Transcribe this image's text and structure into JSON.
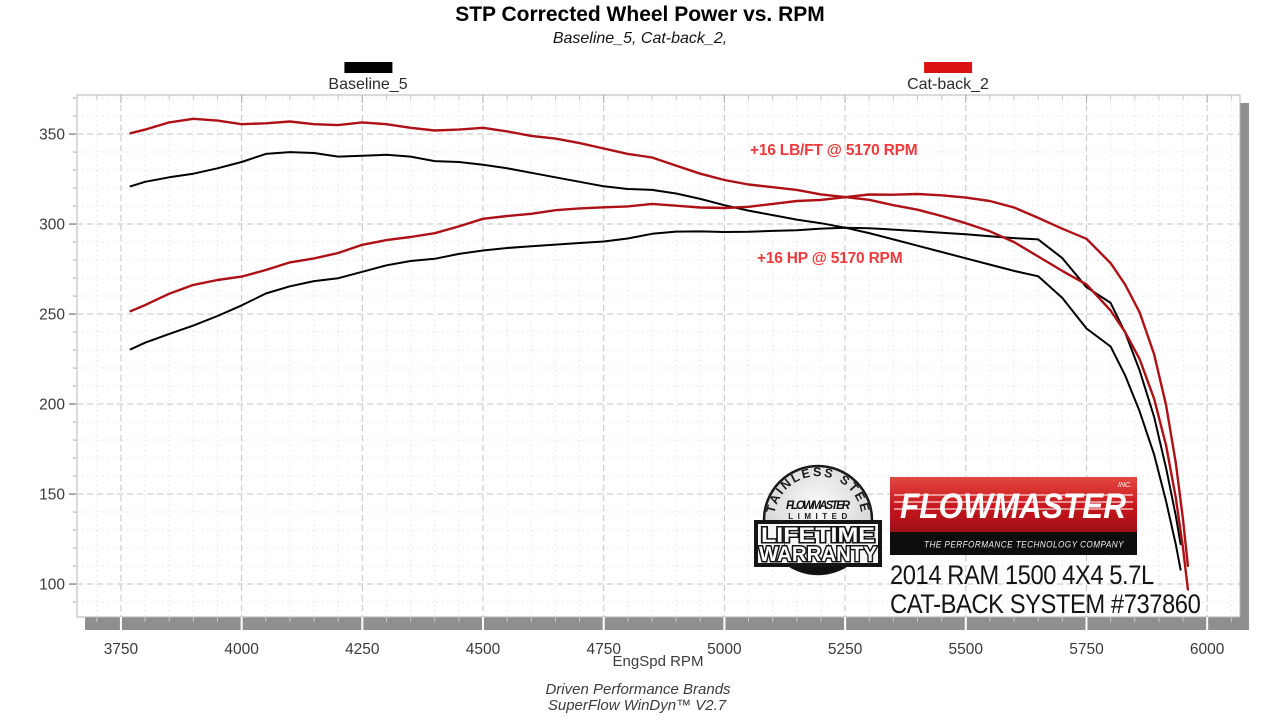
{
  "title": "STP Corrected Wheel Power vs. RPM",
  "subtitle": "Baseline_5, Cat-back_2,",
  "legend": {
    "baseline": {
      "label": "Baseline_5",
      "color": "#000000"
    },
    "catback": {
      "label": "Cat-back_2",
      "color": "#dc1212"
    }
  },
  "badge": {
    "arc_text": "STAINLESS STEEL",
    "brand": "FLOWMASTER",
    "limited": "LIMITED",
    "line1": "LIFETIME",
    "line2": "WARRANTY"
  },
  "logo": {
    "brand": "FLOWMASTER",
    "inc": "INC.",
    "tagline": "THE PERFORMANCE TECHNOLOGY COMPANY",
    "red": "#c8161d"
  },
  "vehicle": {
    "line1": "2014 RAM 1500 4X4 5.7L",
    "line2": "CAT-BACK SYSTEM #737860"
  },
  "footer": {
    "xaxis_label": "EngSpd  RPM",
    "brand_line": "Driven Performance Brands",
    "software_line": "SuperFlow WinDyn™ V2.7"
  },
  "chart_data": {
    "type": "line",
    "title": "STP Corrected Wheel Power vs. RPM",
    "subtitle": "Baseline_5, Cat-back_2,",
    "xlabel": "EngSpd RPM",
    "ylabel": "",
    "grid": true,
    "legend_position": "top",
    "xlim": [
      3659,
      6068
    ],
    "ylim": [
      81.7,
      371.7
    ],
    "x_major_ticks": [
      3750,
      4000,
      4250,
      4500,
      4750,
      5000,
      5250,
      5500,
      5750,
      6000
    ],
    "x_minor_step": 50,
    "y_major_ticks": [
      100,
      150,
      200,
      250,
      300,
      350
    ],
    "y_minor_step": 10,
    "annotations": [
      {
        "text": "+16 LB/FT @ 5170 RPM",
        "x_rpm": 5170,
        "y_val": 340,
        "color": "#ee3a3c"
      },
      {
        "text": "+16 HP @ 5170 RPM",
        "x_rpm": 5170,
        "y_val": 280,
        "color": "#ee3a3c"
      }
    ],
    "series": [
      {
        "name": "Baseline_5 torque (lb-ft)",
        "color": "#000000",
        "width": 2,
        "points": [
          [
            3770,
            321
          ],
          [
            3800,
            323.5
          ],
          [
            3850,
            326
          ],
          [
            3900,
            328
          ],
          [
            3950,
            331
          ],
          [
            4000,
            334.5
          ],
          [
            4050,
            339
          ],
          [
            4100,
            340
          ],
          [
            4150,
            339.5
          ],
          [
            4200,
            337.5
          ],
          [
            4250,
            338
          ],
          [
            4300,
            338.5
          ],
          [
            4350,
            337.5
          ],
          [
            4400,
            335
          ],
          [
            4450,
            334.5
          ],
          [
            4500,
            333
          ],
          [
            4550,
            331
          ],
          [
            4600,
            328.5
          ],
          [
            4650,
            326
          ],
          [
            4700,
            323.5
          ],
          [
            4750,
            321
          ],
          [
            4800,
            319.5
          ],
          [
            4850,
            319
          ],
          [
            4900,
            317
          ],
          [
            4950,
            314
          ],
          [
            5000,
            310.5
          ],
          [
            5050,
            307.5
          ],
          [
            5100,
            305
          ],
          [
            5150,
            302.5
          ],
          [
            5200,
            300.5
          ],
          [
            5250,
            298
          ],
          [
            5300,
            295
          ],
          [
            5350,
            291.5
          ],
          [
            5400,
            288
          ],
          [
            5450,
            284.5
          ],
          [
            5500,
            281
          ],
          [
            5550,
            277.5
          ],
          [
            5600,
            274
          ],
          [
            5650,
            271
          ],
          [
            5700,
            259
          ],
          [
            5750,
            242
          ],
          [
            5800,
            232
          ],
          [
            5830,
            216
          ],
          [
            5860,
            196
          ],
          [
            5890,
            172
          ],
          [
            5915,
            146
          ],
          [
            5935,
            122
          ],
          [
            5945,
            108
          ]
        ]
      },
      {
        "name": "Baseline_5 power (hp)",
        "color": "#000000",
        "width": 2,
        "points": [
          [
            3770,
            230.4
          ],
          [
            3800,
            234.1
          ],
          [
            3850,
            239
          ],
          [
            3900,
            243.6
          ],
          [
            3950,
            248.9
          ],
          [
            4000,
            254.8
          ],
          [
            4050,
            261.4
          ],
          [
            4100,
            265.4
          ],
          [
            4150,
            268.3
          ],
          [
            4200,
            269.9
          ],
          [
            4250,
            273.5
          ],
          [
            4300,
            277.1
          ],
          [
            4350,
            279.5
          ],
          [
            4400,
            280.7
          ],
          [
            4450,
            283.4
          ],
          [
            4500,
            285.3
          ],
          [
            4550,
            286.7
          ],
          [
            4600,
            287.7
          ],
          [
            4650,
            288.6
          ],
          [
            4700,
            289.5
          ],
          [
            4750,
            290.3
          ],
          [
            4800,
            292
          ],
          [
            4850,
            294.6
          ],
          [
            4900,
            295.8
          ],
          [
            4950,
            295.9
          ],
          [
            5000,
            295.6
          ],
          [
            5050,
            295.7
          ],
          [
            5100,
            296.2
          ],
          [
            5150,
            296.6
          ],
          [
            5200,
            297.5
          ],
          [
            5250,
            297.9
          ],
          [
            5300,
            297.7
          ],
          [
            5350,
            296.9
          ],
          [
            5400,
            296.1
          ],
          [
            5450,
            295.2
          ],
          [
            5500,
            294.3
          ],
          [
            5550,
            293.2
          ],
          [
            5600,
            292.2
          ],
          [
            5650,
            291.5
          ],
          [
            5700,
            281.1
          ],
          [
            5750,
            264.9
          ],
          [
            5800,
            256.2
          ],
          [
            5830,
            239.8
          ],
          [
            5860,
            218.7
          ],
          [
            5890,
            192.9
          ],
          [
            5915,
            164.4
          ],
          [
            5935,
            137.9
          ],
          [
            5945,
            122.2
          ]
        ]
      },
      {
        "name": "Cat-back_2 torque (lb-ft)",
        "color": "#ae1115",
        "width": 2.4,
        "points": [
          [
            3770,
            350.5
          ],
          [
            3800,
            352.5
          ],
          [
            3850,
            356.5
          ],
          [
            3900,
            358.5
          ],
          [
            3950,
            357.5
          ],
          [
            4000,
            355.5
          ],
          [
            4050,
            356
          ],
          [
            4100,
            357
          ],
          [
            4150,
            355.5
          ],
          [
            4200,
            355
          ],
          [
            4250,
            356.5
          ],
          [
            4300,
            355.5
          ],
          [
            4350,
            353.5
          ],
          [
            4400,
            352
          ],
          [
            4450,
            352.5
          ],
          [
            4500,
            353.5
          ],
          [
            4550,
            351.5
          ],
          [
            4600,
            349
          ],
          [
            4650,
            347.5
          ],
          [
            4700,
            345
          ],
          [
            4750,
            342
          ],
          [
            4800,
            339
          ],
          [
            4850,
            337
          ],
          [
            4900,
            332.5
          ],
          [
            4950,
            328
          ],
          [
            5000,
            324.5
          ],
          [
            5050,
            322
          ],
          [
            5100,
            320.5
          ],
          [
            5150,
            319
          ],
          [
            5200,
            316.5
          ],
          [
            5250,
            315
          ],
          [
            5300,
            313.5
          ],
          [
            5350,
            310.5
          ],
          [
            5400,
            308
          ],
          [
            5450,
            304.5
          ],
          [
            5500,
            300.5
          ],
          [
            5550,
            296
          ],
          [
            5600,
            290
          ],
          [
            5650,
            282
          ],
          [
            5700,
            274
          ],
          [
            5750,
            266.5
          ],
          [
            5800,
            252
          ],
          [
            5830,
            240
          ],
          [
            5860,
            225
          ],
          [
            5890,
            203
          ],
          [
            5915,
            177
          ],
          [
            5935,
            148
          ],
          [
            5950,
            120
          ],
          [
            5960,
            97
          ]
        ]
      },
      {
        "name": "Cat-back_2 power (hp)",
        "color": "#ae1115",
        "width": 2.4,
        "points": [
          [
            3770,
            251.6
          ],
          [
            3800,
            255
          ],
          [
            3850,
            261.3
          ],
          [
            3900,
            266.2
          ],
          [
            3950,
            268.9
          ],
          [
            4000,
            270.8
          ],
          [
            4050,
            274.5
          ],
          [
            4100,
            278.7
          ],
          [
            4150,
            280.9
          ],
          [
            4200,
            283.9
          ],
          [
            4250,
            288.5
          ],
          [
            4300,
            291.1
          ],
          [
            4350,
            292.8
          ],
          [
            4400,
            294.9
          ],
          [
            4450,
            298.7
          ],
          [
            4500,
            302.9
          ],
          [
            4550,
            304.5
          ],
          [
            4600,
            305.7
          ],
          [
            4650,
            307.7
          ],
          [
            4700,
            308.7
          ],
          [
            4750,
            309.3
          ],
          [
            4800,
            309.8
          ],
          [
            4850,
            311.2
          ],
          [
            4900,
            310.2
          ],
          [
            4950,
            309.2
          ],
          [
            5000,
            308.9
          ],
          [
            5050,
            309.6
          ],
          [
            5100,
            311.2
          ],
          [
            5150,
            312.8
          ],
          [
            5200,
            313.4
          ],
          [
            5250,
            314.9
          ],
          [
            5300,
            316.4
          ],
          [
            5350,
            316.3
          ],
          [
            5400,
            316.7
          ],
          [
            5450,
            316
          ],
          [
            5500,
            314.7
          ],
          [
            5550,
            312.8
          ],
          [
            5600,
            309.2
          ],
          [
            5650,
            303.4
          ],
          [
            5700,
            297.4
          ],
          [
            5750,
            291.8
          ],
          [
            5800,
            278.3
          ],
          [
            5830,
            266.4
          ],
          [
            5860,
            251
          ],
          [
            5890,
            227.7
          ],
          [
            5915,
            199.3
          ],
          [
            5935,
            167.3
          ],
          [
            5950,
            135.9
          ],
          [
            5960,
            110.1
          ]
        ]
      }
    ]
  }
}
